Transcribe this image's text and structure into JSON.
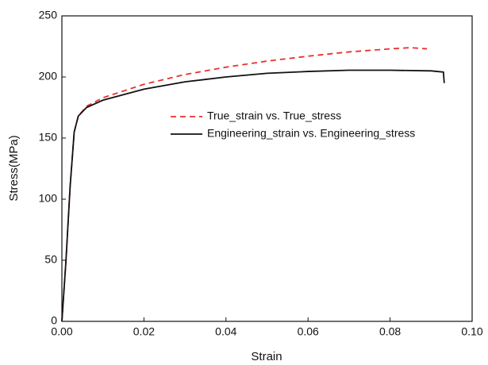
{
  "chart_data": {
    "type": "line",
    "xlabel": "Strain",
    "ylabel": "Stress(MPa)",
    "xlim": [
      0,
      0.1
    ],
    "ylim": [
      0,
      250
    ],
    "xticks": [
      {
        "value": 0,
        "label": "0.00"
      },
      {
        "value": 0.02,
        "label": "0.02"
      },
      {
        "value": 0.04,
        "label": "0.04"
      },
      {
        "value": 0.06,
        "label": "0.06"
      },
      {
        "value": 0.08,
        "label": "0.08"
      },
      {
        "value": 0.1,
        "label": "0.10"
      }
    ],
    "yticks": [
      0,
      50,
      100,
      150,
      200,
      250
    ],
    "legend": "center right",
    "series": [
      {
        "name": "True_strain vs. True_stress",
        "color": "#e8312f",
        "dash": true,
        "x": [
          0,
          0.001,
          0.002,
          0.003,
          0.004,
          0.006,
          0.01,
          0.02,
          0.03,
          0.04,
          0.05,
          0.06,
          0.07,
          0.08,
          0.085,
          0.089
        ],
        "values": [
          0,
          50,
          110,
          155,
          168,
          176,
          183,
          194,
          202,
          208,
          213,
          217,
          220.5,
          223,
          224,
          223
        ]
      },
      {
        "name": "Engineering_strain vs. Engineering_stress",
        "color": "#111111",
        "dash": false,
        "x": [
          0,
          0.001,
          0.002,
          0.003,
          0.004,
          0.006,
          0.01,
          0.02,
          0.03,
          0.04,
          0.05,
          0.06,
          0.07,
          0.08,
          0.09,
          0.093,
          0.0932
        ],
        "values": [
          0,
          50,
          110,
          155,
          168,
          175,
          181,
          190,
          196,
          200,
          203,
          204.5,
          205.5,
          205.5,
          205,
          204,
          195
        ]
      }
    ]
  }
}
